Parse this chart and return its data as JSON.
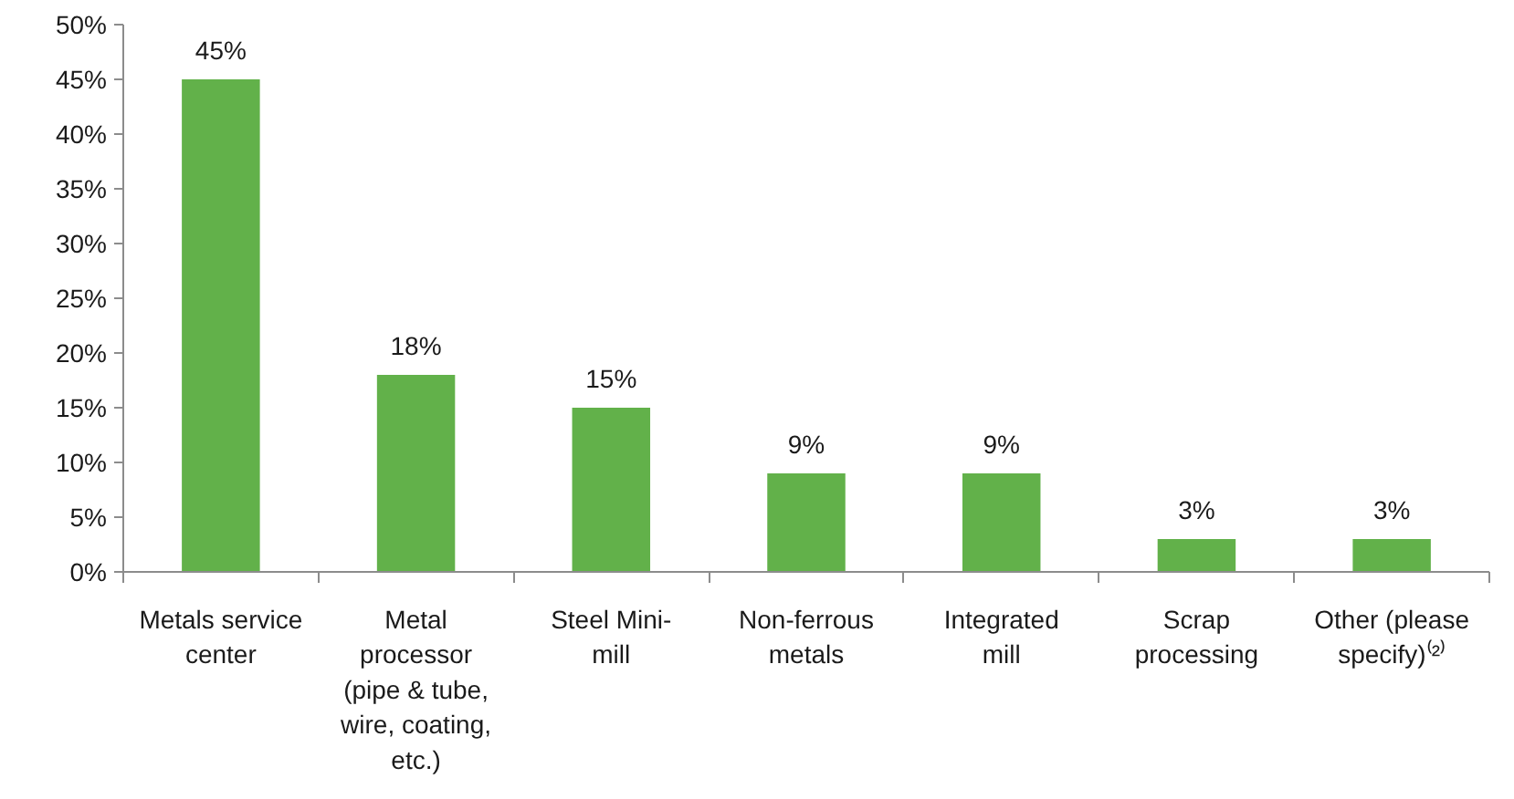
{
  "chart_data": {
    "type": "bar",
    "categories": [
      "Metals service center",
      "Metal processor (pipe & tube, wire, coating, etc.)",
      "Steel Mini-mill",
      "Non-ferrous metals",
      "Integrated mill",
      "Scrap processing",
      "Other (please specify)⁽²⁾"
    ],
    "values": [
      45,
      18,
      15,
      9,
      9,
      3,
      3
    ],
    "value_labels": [
      "45%",
      "18%",
      "15%",
      "9%",
      "9%",
      "3%",
      "3%"
    ],
    "color": "#62b14a",
    "ylim": [
      0,
      50
    ],
    "yticks": [
      {
        "value": 0,
        "label": "0%"
      },
      {
        "value": 5,
        "label": "5%"
      },
      {
        "value": 10,
        "label": "10%"
      },
      {
        "value": 15,
        "label": "15%"
      },
      {
        "value": 20,
        "label": "20%"
      },
      {
        "value": 25,
        "label": "25%"
      },
      {
        "value": 30,
        "label": "30%"
      },
      {
        "value": 35,
        "label": "35%"
      },
      {
        "value": 40,
        "label": "40%"
      },
      {
        "value": 45,
        "label": "45%"
      },
      {
        "value": 50,
        "label": "50%"
      }
    ],
    "grid": false
  }
}
